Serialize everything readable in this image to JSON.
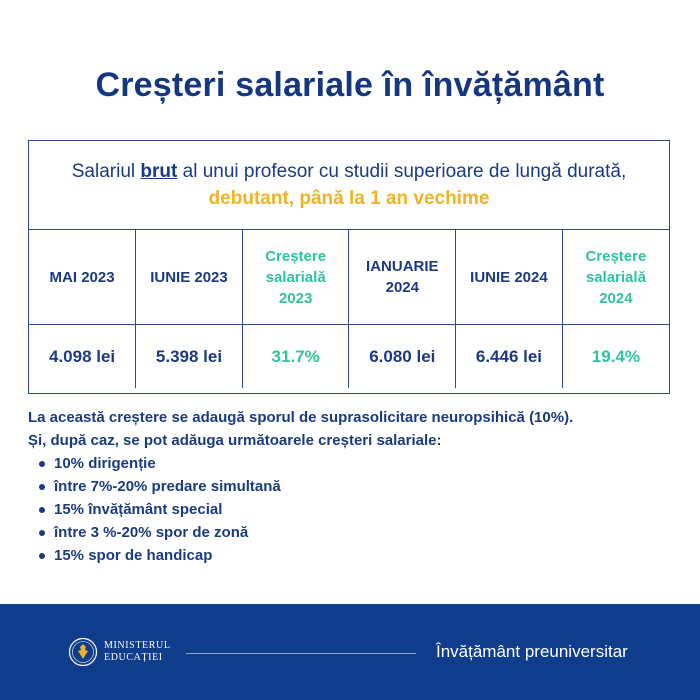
{
  "title": "Creșteri salariale în învățământ",
  "card": {
    "heading_part1": "Salariul ",
    "heading_brut": "brut",
    "heading_part2": " al unui profesor cu studii superioare de lungă durată, ",
    "heading_highlight": "debutant, până la 1 an vechime"
  },
  "table": {
    "headers": [
      "MAI 2023",
      "IUNIE 2023",
      "Creștere salarială 2023",
      "IANUARIE 2024",
      "IUNIE 2024",
      "Creștere salarială 2024"
    ],
    "values": [
      "4.098 lei",
      "5.398 lei",
      "31.7%",
      "6.080 lei",
      "6.446 lei",
      "19.4%"
    ]
  },
  "notes": {
    "line1_part1": "La această creștere se adaugă ",
    "line1_bold": "sporul de suprasolicitare neuropsihică (10%).",
    "line2": "Și, după caz, se pot adăuga următoarele creșteri salariale:",
    "bullets": [
      "10% dirigenție",
      "între 7%-20% predare simultană",
      "15% învățământ special",
      "între 3 %-20% spor de zonă",
      "15% spor de handicap"
    ]
  },
  "footer": {
    "ministry_line1": "MINISTERUL",
    "ministry_line2": "EDUCAȚIEI",
    "crest_icon": "ministry-crest-icon",
    "tagline": "Învățământ preuniversitar"
  },
  "colors": {
    "primary": "#14377f",
    "accent_green": "#2fc4a0",
    "accent_yellow": "#f0b323",
    "footer_bg": "#0f3d8c"
  }
}
